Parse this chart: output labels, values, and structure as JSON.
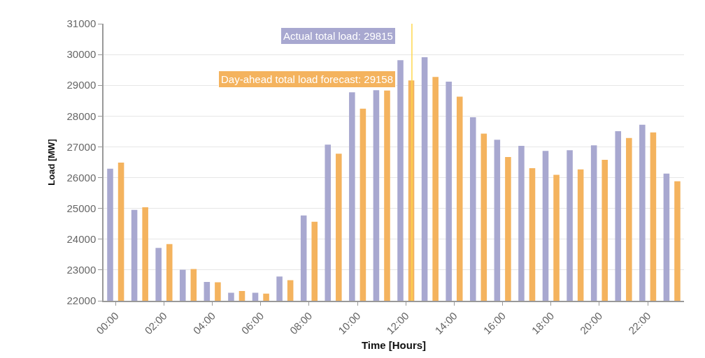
{
  "chart_data": {
    "type": "bar",
    "xlabel": "Time [Hours]",
    "ylabel": "Load [MW]",
    "categories": [
      "00:00",
      null,
      "02:00",
      null,
      "04:00",
      null,
      "06:00",
      null,
      "08:00",
      null,
      "10:00",
      null,
      "12:00",
      null,
      "14:00",
      null,
      "16:00",
      null,
      "18:00",
      null,
      "20:00",
      null,
      "22:00",
      null
    ],
    "series": [
      {
        "color": "#a8a8d0",
        "values": [
          26290,
          24950,
          23720,
          23010,
          22610,
          22260,
          22260,
          22790,
          24770,
          27070,
          28770,
          28840,
          29815,
          29910,
          29120,
          27960,
          27230,
          27030,
          26870,
          26890,
          27050,
          27510,
          27720,
          26130
        ]
      },
      {
        "color": "#f4b35e",
        "values": [
          26490,
          25040,
          23840,
          23030,
          22600,
          22320,
          22230,
          22670,
          24570,
          26780,
          28240,
          28830,
          29158,
          29270,
          28630,
          27430,
          26670,
          26310,
          26090,
          26270,
          26580,
          27290,
          27470,
          25880
        ]
      }
    ],
    "ylim": [
      22000,
      31000
    ],
    "yticks": [
      22000,
      23000,
      24000,
      25000,
      26000,
      27000,
      28000,
      29000,
      30000,
      31000
    ],
    "grid": "y",
    "annotations": [
      {
        "text": "Actual total load: 29815",
        "x": "12:00",
        "y": 29815
      },
      {
        "text": "Day-ahead total load forecast: 29158",
        "x": "12:00",
        "y": 29158
      }
    ],
    "ref_lines": [
      {
        "axis": "x",
        "value": "12:00",
        "color": "#ffd84d"
      }
    ]
  }
}
